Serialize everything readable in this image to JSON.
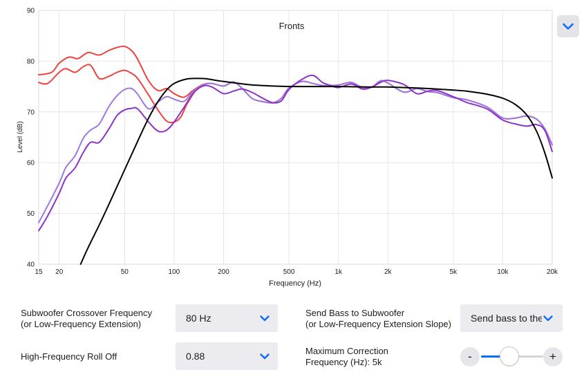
{
  "chart_data": {
    "type": "line",
    "title": "Fronts",
    "xlabel": "Frequency (Hz)",
    "ylabel": "Level (dB)",
    "x_scale": "log",
    "xlim": [
      15,
      20000
    ],
    "ylim": [
      40,
      90
    ],
    "x_ticks": [
      15,
      20,
      50,
      100,
      200,
      500,
      1000,
      2000,
      5000,
      10000,
      20000
    ],
    "x_tick_labels": [
      "15",
      "20",
      "50",
      "100",
      "200",
      "500",
      "1k",
      "2k",
      "5k",
      "10k",
      "20k"
    ],
    "y_ticks": [
      40,
      50,
      60,
      70,
      80,
      90
    ],
    "grid": true,
    "series": [
      {
        "color": "#f0413c",
        "x": [
          15,
          18,
          20,
          23,
          26,
          30,
          35,
          40,
          45,
          50,
          55,
          60,
          70,
          80,
          90,
          100,
          115,
          130,
          150,
          170,
          200,
          230,
          260,
          300,
          350,
          400,
          450,
          500,
          600,
          700,
          800,
          900,
          1000,
          1200,
          1400,
          1600,
          1800,
          2000,
          2500,
          3000,
          3500,
          4000,
          5000,
          6000,
          8000,
          10000,
          12000,
          14000,
          16000,
          18000,
          20000
        ],
        "y": [
          77.3,
          77.8,
          79.6,
          80.8,
          80.5,
          81.7,
          81.2,
          82.1,
          82.7,
          82.9,
          82.1,
          80.4,
          76.1,
          74.2,
          74.6,
          73.6,
          72.9,
          74.2,
          75.4,
          75.6,
          75.1,
          75.9,
          74.6,
          72.6,
          72.0,
          71.8,
          72.7,
          74.7,
          76.0,
          75.6,
          75.2,
          75.2,
          75.3,
          75.8,
          74.8,
          74.9,
          76.1,
          75.7,
          73.9,
          74.6,
          74.0,
          73.8,
          72.8,
          72.4,
          71.0,
          68.8,
          68.8,
          69.2,
          68.6,
          66.7,
          63.5
        ]
      },
      {
        "color": "#f0413c",
        "x": [
          15,
          17,
          20,
          22,
          25,
          28,
          31,
          35,
          40,
          45,
          50,
          55,
          60,
          70,
          80,
          90,
          100,
          110,
          120,
          140,
          160
        ],
        "y": [
          75.8,
          75.6,
          77.8,
          78.5,
          77.8,
          78.9,
          79.2,
          76.6,
          77.0,
          77.8,
          78.2,
          77.6,
          76.6,
          73.3,
          70.3,
          68.2,
          68.0,
          69.0,
          71.6,
          74.8,
          75.6
        ]
      },
      {
        "color": "#9b78e0",
        "x": [
          15,
          17,
          20,
          22,
          25,
          28,
          31,
          35,
          40,
          45,
          50,
          55,
          60,
          70,
          80,
          90,
          100,
          115,
          130,
          150,
          170,
          200,
          230,
          260,
          300,
          350,
          400,
          450,
          500,
          600,
          700,
          800,
          900,
          1000,
          1200,
          1400,
          1600,
          1800,
          2000,
          2500,
          3000,
          3500,
          4000,
          5000,
          6000,
          8000,
          10000,
          12000,
          14000,
          16000,
          18000,
          20000
        ],
        "y": [
          48.2,
          51.5,
          56.0,
          59.1,
          61.4,
          64.8,
          66.4,
          67.6,
          71.0,
          73.2,
          74.4,
          74.6,
          73.5,
          70.6,
          72.0,
          73.0,
          72.5,
          72.1,
          74.0,
          75.3,
          75.6,
          75.1,
          75.9,
          74.6,
          72.6,
          72.0,
          71.8,
          72.7,
          74.7,
          76.0,
          75.6,
          75.2,
          75.2,
          75.3,
          75.8,
          74.8,
          74.9,
          76.1,
          75.7,
          73.9,
          74.6,
          74.0,
          73.8,
          72.8,
          72.4,
          71.0,
          68.8,
          68.8,
          69.2,
          68.6,
          66.7,
          63.5
        ]
      },
      {
        "color": "#8c32c8",
        "x": [
          15,
          17,
          20,
          22,
          25,
          28,
          31,
          35,
          40,
          45,
          50,
          55,
          60,
          70,
          80,
          90,
          100,
          115,
          130,
          150,
          170,
          200,
          230,
          260,
          300,
          350,
          400,
          450,
          500,
          600,
          700,
          800,
          900,
          1000,
          1200,
          1400,
          1600,
          1800,
          2000,
          2500,
          3000,
          3500,
          4000,
          5000,
          6000,
          8000,
          10000,
          12000,
          14000,
          16000,
          18000,
          20000
        ],
        "y": [
          46.6,
          49.5,
          54.0,
          57.0,
          59.0,
          62.0,
          64.0,
          64.0,
          66.6,
          69.3,
          70.4,
          70.7,
          70.6,
          68.0,
          66.2,
          66.4,
          68.0,
          70.9,
          73.6,
          75.1,
          74.9,
          73.6,
          74.1,
          74.5,
          73.8,
          72.6,
          71.8,
          72.2,
          74.4,
          76.4,
          77.2,
          75.8,
          75.2,
          74.8,
          75.5,
          74.5,
          74.9,
          75.8,
          76.2,
          75.4,
          73.6,
          74.1,
          74.2,
          73.0,
          71.9,
          70.6,
          68.4,
          67.6,
          67.2,
          67.5,
          66.4,
          62.2
        ]
      },
      {
        "color": "#000000",
        "x": [
          27,
          30,
          35,
          40,
          50,
          60,
          70,
          80,
          90,
          100,
          120,
          140,
          160,
          180,
          200,
          250,
          300,
          400,
          500,
          700,
          1000,
          1500,
          2000,
          3000,
          4000,
          5000,
          6000,
          7000,
          8000,
          10000,
          12000,
          14000,
          16000,
          18000,
          20000
        ],
        "y": [
          40.0,
          43.3,
          47.7,
          51.7,
          58.6,
          64.2,
          68.8,
          72.1,
          74.3,
          75.6,
          76.5,
          76.6,
          76.5,
          76.2,
          76.0,
          75.6,
          75.3,
          75.1,
          75.0,
          75.0,
          75.0,
          74.9,
          74.9,
          74.7,
          74.5,
          74.3,
          74.1,
          73.8,
          73.5,
          72.7,
          71.4,
          69.4,
          66.3,
          62.0,
          57.0
        ]
      }
    ]
  },
  "controls": {
    "crossover_label_line1": "Subwoofer Crossover Frequency",
    "crossover_label_line2": "(or Low-Frequency Extension)",
    "crossover_value": "80 Hz",
    "send_bass_label_line1": "Send Bass to Subwoofer",
    "send_bass_label_line2": "(or Low-Frequency Extension Slope)",
    "send_bass_value": "Send bass to the ...",
    "hf_rolloff_label": "High-Frequency Roll Off",
    "hf_rolloff_value": "0.88",
    "max_correction_label_line1": "Maximum Correction",
    "max_correction_label_line2": "Frequency (Hz): 5k",
    "max_correction_minus": "-",
    "max_correction_plus": "+",
    "max_correction_level": 0.46
  },
  "icons": {
    "chart_menu": "chevron-down-icon",
    "accent_color": "#0a6cff"
  }
}
